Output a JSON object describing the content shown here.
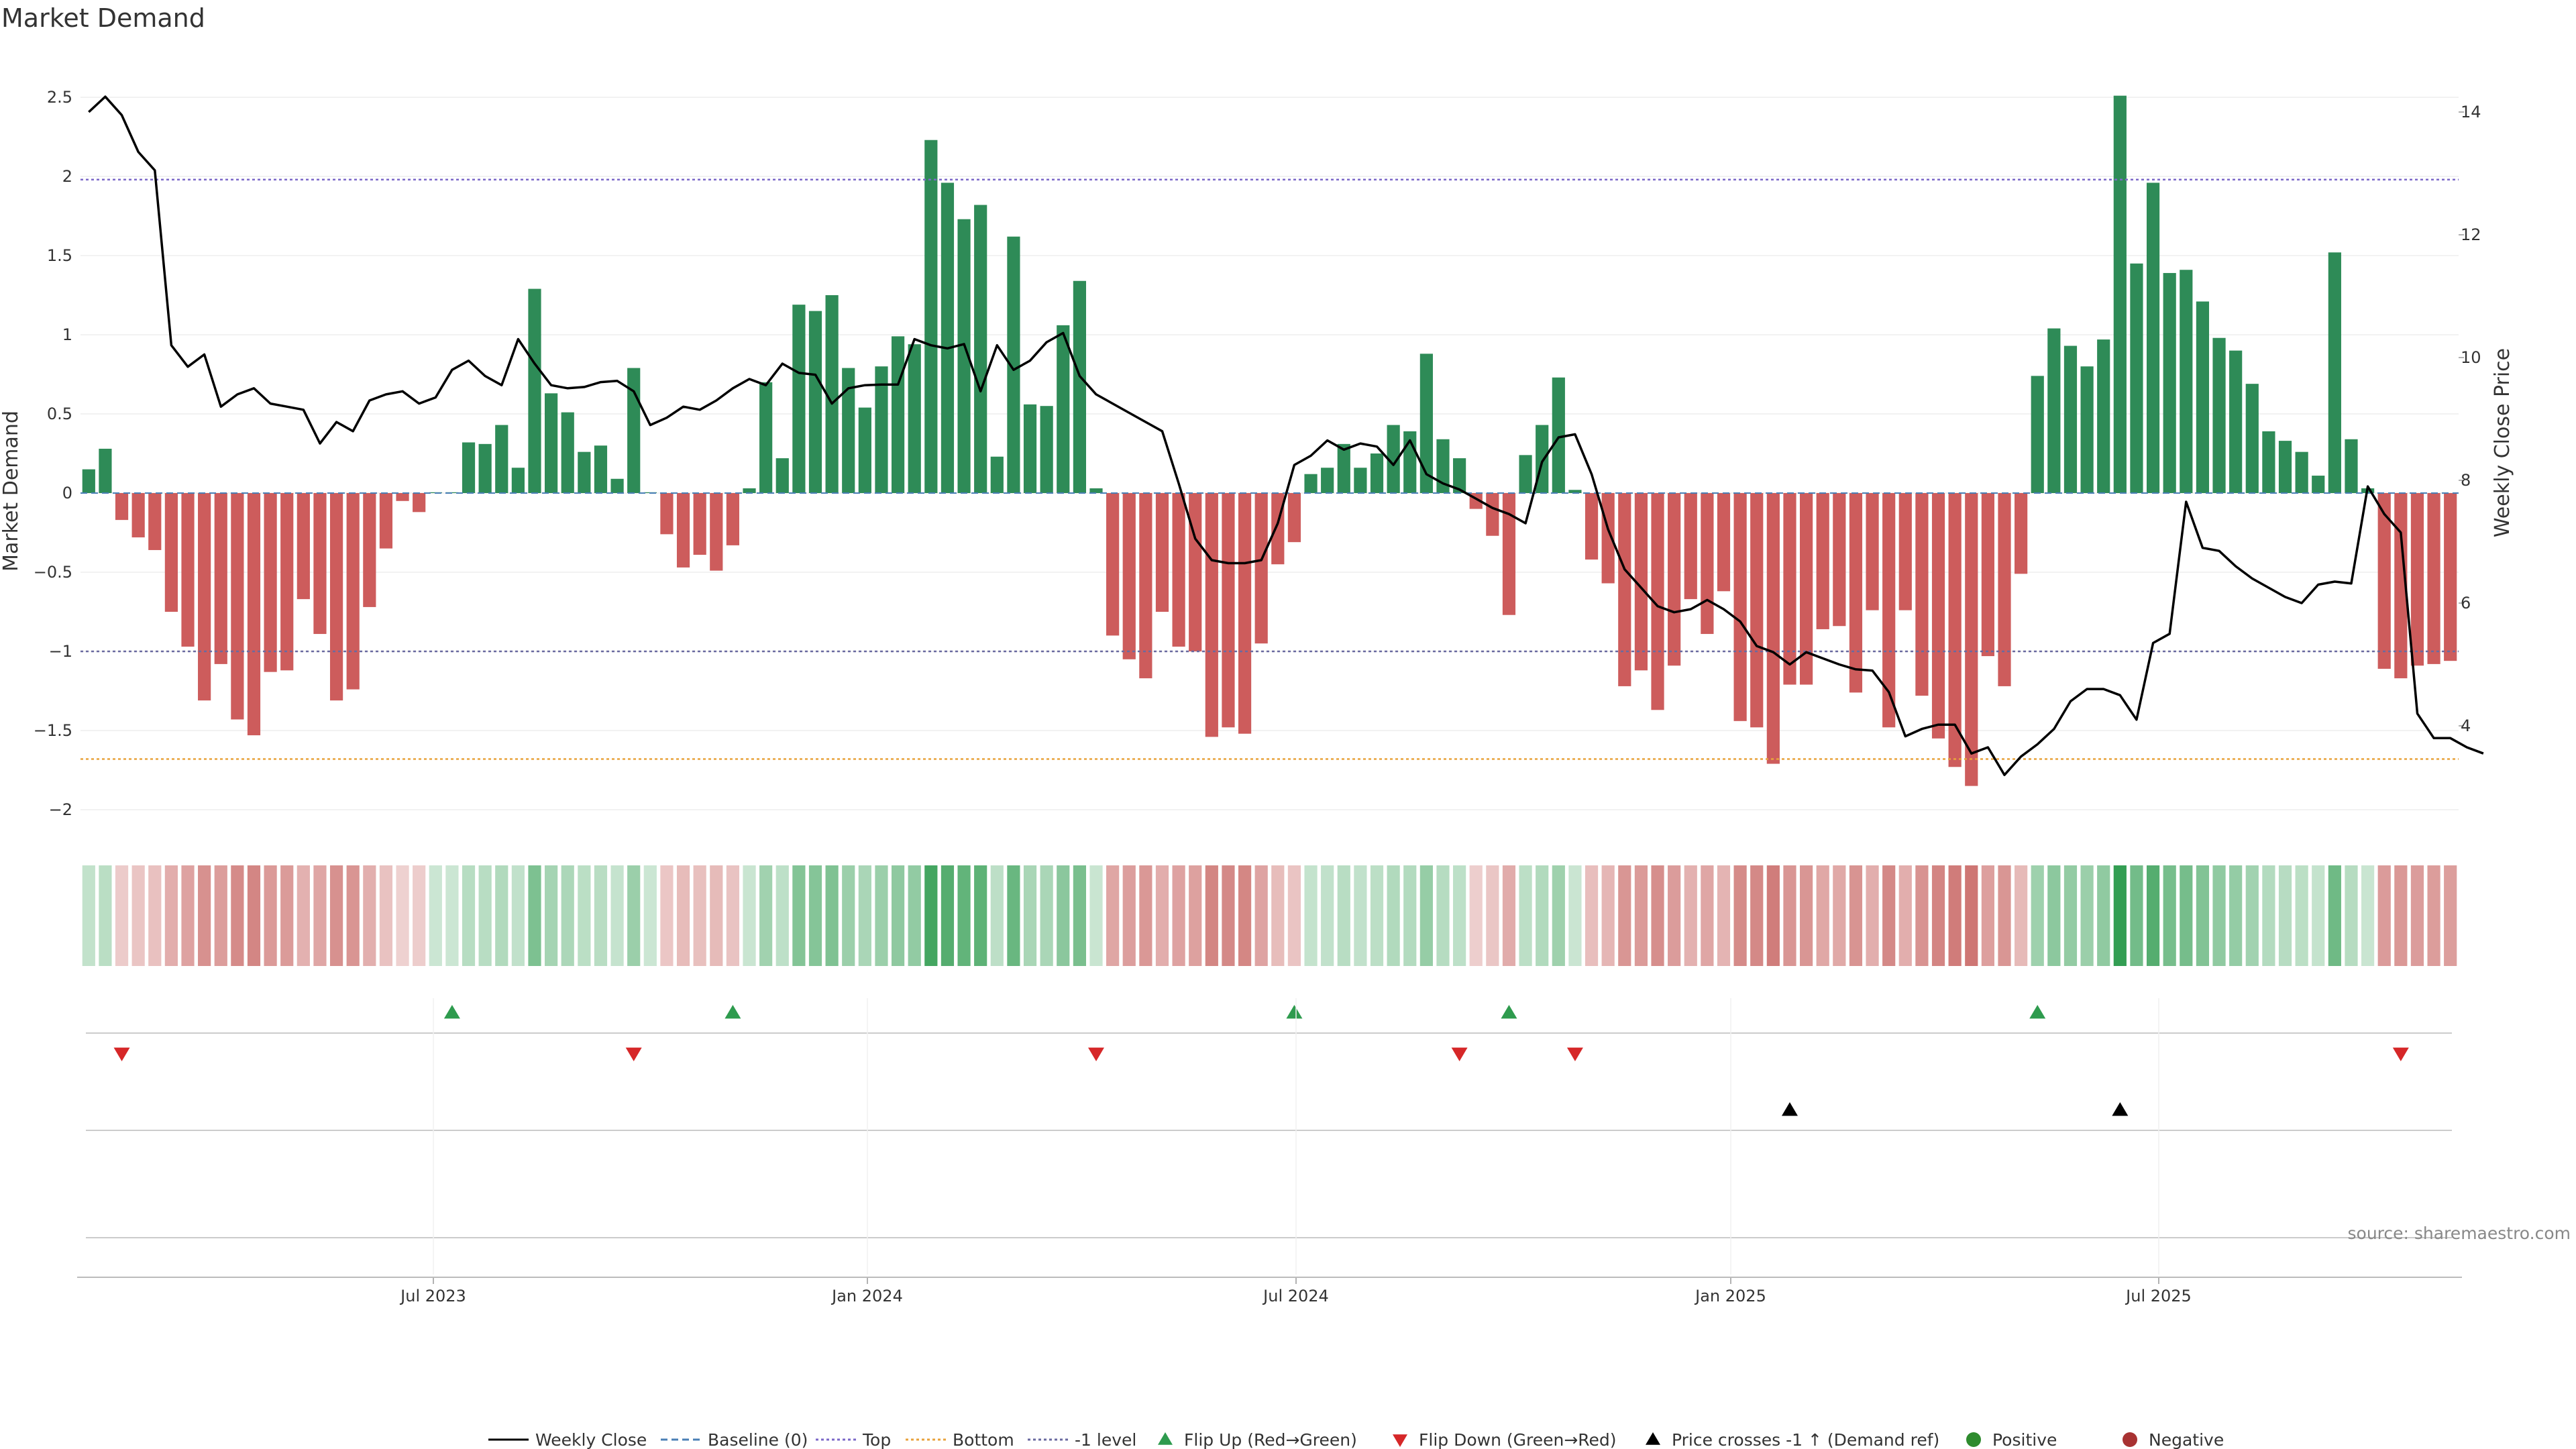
{
  "chart_data": {
    "type": "bar",
    "title": "Market Demand",
    "y_left_label": "Market Demand",
    "y_right_label": "Weekly Close Price",
    "source": "source: sharemaestro.com",
    "y_left_ticks": [
      "2.5",
      "2",
      "1.5",
      "1",
      "0.5",
      "0",
      "−0.5",
      "−1",
      "−1.5",
      "−2"
    ],
    "y_right_ticks": [
      "14",
      "12",
      "10",
      "8",
      "6",
      "4"
    ],
    "x_ticks": [
      "Jul 2023",
      "Jan 2024",
      "Jul 2024",
      "Jan 2025",
      "Jul 2025"
    ],
    "ylim_left": [
      -2.2,
      2.7
    ],
    "ylim_right": [
      2.5,
      15.1
    ],
    "reference_lines": {
      "top": 1.98,
      "bottom": -1.68,
      "minus_one": -1.0,
      "baseline": 0
    },
    "colors": {
      "positive": "#2e8b57",
      "negative": "#cd5c5c",
      "price": "#000000",
      "top_line": "#7b68c8",
      "bottom_line": "#e8a33d",
      "minus_one_line": "#6a6aa0",
      "flip_up": "#2e9b4e",
      "flip_down": "#d62728",
      "cross": "#000000"
    },
    "demand": [
      0.15,
      0.28,
      -0.17,
      -0.28,
      -0.36,
      -0.75,
      -0.97,
      -1.31,
      -1.08,
      -1.43,
      -1.53,
      -1.13,
      -1.12,
      -0.67,
      -0.89,
      -1.31,
      -1.24,
      -0.72,
      -0.35,
      -0.05,
      -0.12,
      0.0,
      0.0,
      0.32,
      0.31,
      0.43,
      0.16,
      1.29,
      0.63,
      0.51,
      0.26,
      0.3,
      0.09,
      0.79,
      0.0,
      -0.26,
      -0.47,
      -0.39,
      -0.49,
      -0.33,
      0.03,
      0.7,
      0.22,
      1.19,
      1.15,
      1.25,
      0.79,
      0.54,
      0.8,
      0.99,
      0.94,
      2.23,
      1.96,
      1.73,
      1.82,
      0.23,
      1.62,
      0.56,
      0.55,
      1.06,
      1.34,
      0.03,
      -0.9,
      -1.05,
      -1.17,
      -0.75,
      -0.97,
      -1.0,
      -1.54,
      -1.48,
      -1.52,
      -0.95,
      -0.45,
      -0.31,
      0.12,
      0.16,
      0.31,
      0.16,
      0.25,
      0.43,
      0.39,
      0.88,
      0.34,
      0.22,
      -0.1,
      -0.27,
      -0.77,
      0.24,
      0.43,
      0.73,
      0.02,
      -0.42,
      -0.57,
      -1.22,
      -1.12,
      -1.37,
      -1.09,
      -0.67,
      -0.89,
      -0.62,
      -1.44,
      -1.48,
      -1.71,
      -1.21,
      -1.21,
      -0.86,
      -0.84,
      -1.26,
      -0.74,
      -1.48,
      -0.74,
      -1.28,
      -1.55,
      -1.73,
      -1.85,
      -1.03,
      -1.22,
      -0.51,
      0.74,
      1.04,
      0.93,
      0.8,
      0.97,
      2.51,
      1.45,
      1.96,
      1.39,
      1.41,
      1.21,
      0.98,
      0.9,
      0.69,
      0.39,
      0.33,
      0.26,
      0.11,
      1.52,
      0.34,
      0.03,
      -1.11,
      -1.17,
      -1.09,
      -1.08,
      -1.06
    ],
    "price": [
      14.0,
      14.25,
      13.95,
      13.35,
      13.05,
      10.2,
      9.85,
      10.05,
      9.2,
      9.4,
      9.5,
      9.25,
      9.2,
      9.15,
      8.6,
      8.95,
      8.8,
      9.3,
      9.4,
      9.45,
      9.25,
      9.35,
      9.8,
      9.95,
      9.7,
      9.55,
      10.3,
      9.9,
      9.55,
      9.5,
      9.52,
      9.6,
      9.62,
      9.45,
      8.9,
      9.02,
      9.2,
      9.15,
      9.3,
      9.5,
      9.65,
      9.55,
      9.9,
      9.75,
      9.72,
      9.25,
      9.5,
      9.55,
      9.56,
      9.56,
      10.3,
      10.2,
      10.15,
      10.22,
      9.45,
      10.2,
      9.8,
      9.95,
      10.25,
      10.4,
      9.7,
      9.4,
      9.25,
      9.1,
      8.95,
      8.8,
      7.95,
      7.05,
      6.7,
      6.65,
      6.65,
      6.7,
      7.3,
      8.25,
      8.4,
      8.65,
      8.5,
      8.6,
      8.55,
      8.25,
      8.65,
      8.1,
      7.95,
      7.85,
      7.7,
      7.55,
      7.45,
      7.3,
      8.3,
      8.7,
      8.75,
      8.1,
      7.2,
      6.55,
      6.25,
      5.95,
      5.85,
      5.9,
      6.05,
      5.9,
      5.7,
      5.3,
      5.2,
      5.0,
      5.2,
      5.1,
      5.0,
      4.92,
      4.9,
      4.55,
      3.83,
      3.95,
      4.02,
      4.02,
      3.55,
      3.65,
      3.2,
      3.5,
      3.7,
      3.95,
      4.4,
      4.6,
      4.6,
      4.5,
      4.1,
      5.35,
      5.5,
      7.65,
      6.9,
      6.85,
      6.6,
      6.4,
      6.25,
      6.1,
      6.0,
      6.3,
      6.35,
      6.32,
      7.9,
      7.45,
      7.15,
      4.2,
      3.8,
      3.8,
      3.65,
      3.55
    ],
    "flip_up_weeks": [
      22,
      39,
      73,
      86,
      118
    ],
    "flip_down_weeks": [
      2,
      33,
      61,
      83,
      90,
      140
    ],
    "price_cross_weeks": [
      103,
      123
    ],
    "legend": [
      {
        "label": "Weekly Close",
        "kind": "line-solid"
      },
      {
        "label": "Baseline (0)",
        "kind": "line-dash-blue"
      },
      {
        "label": "Top",
        "kind": "line-dot-purple"
      },
      {
        "label": "Bottom",
        "kind": "line-dot-orange"
      },
      {
        "label": "-1 level",
        "kind": "line-dot-slate"
      },
      {
        "label": "Flip Up (Red→Green)",
        "kind": "tri-up-green"
      },
      {
        "label": "Flip Down (Green→Red)",
        "kind": "tri-down-red"
      },
      {
        "label": "Price crosses -1 ↑ (Demand ref)",
        "kind": "tri-up-black"
      },
      {
        "label": "Positive",
        "kind": "dot-green"
      },
      {
        "label": "Negative",
        "kind": "dot-red"
      }
    ]
  }
}
